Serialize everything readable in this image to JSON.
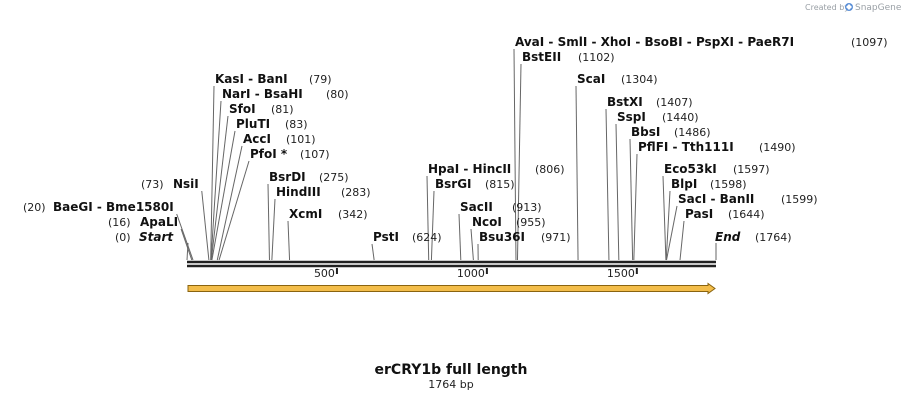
{
  "watermark": {
    "text": "Created by",
    "brand": "SnapGene",
    "icon": "snapgene-logo-icon"
  },
  "sequence": {
    "name": "erCRY1b full length",
    "length_label": "1764 bp",
    "length": 1764,
    "start_label": "Start",
    "start_pos": "(0)",
    "end_label": "End",
    "end_pos": "(1764)",
    "backbone_color": "#222222",
    "feature_color": "#f3bd4a",
    "feature_outline": "#8a6410"
  },
  "ruler": {
    "ticks": [
      500,
      1000,
      1500
    ]
  },
  "sites": [
    {
      "label": "BaeGI  -  Bme1580I",
      "pos": "(20)",
      "site": 20
    },
    {
      "label": "ApaLI",
      "pos": "(16)",
      "site": 16
    },
    {
      "label": "NsiI",
      "pos": "(73)",
      "site": 73
    },
    {
      "label": "KasI  -  BanI",
      "pos": "(79)",
      "site": 79
    },
    {
      "label": "NarI  -  BsaHI",
      "pos": "(80)",
      "site": 80
    },
    {
      "label": "SfoI",
      "pos": "(81)",
      "site": 81
    },
    {
      "label": "PluTI",
      "pos": "(83)",
      "site": 83
    },
    {
      "label": "AccI",
      "pos": "(101)",
      "site": 101
    },
    {
      "label": "PfoI *",
      "pos": "(107)",
      "site": 107
    },
    {
      "label": "BsrDI",
      "pos": "(275)",
      "site": 275
    },
    {
      "label": "HindIII",
      "pos": "(283)",
      "site": 283
    },
    {
      "label": "XcmI",
      "pos": "(342)",
      "site": 342
    },
    {
      "label": "PstI",
      "pos": "(624)",
      "site": 624
    },
    {
      "label": "HpaI  -  HincII",
      "pos": "(806)",
      "site": 806
    },
    {
      "label": "BsrGI",
      "pos": "(815)",
      "site": 815
    },
    {
      "label": "SacII",
      "pos": "(913)",
      "site": 913
    },
    {
      "label": "NcoI",
      "pos": "(955)",
      "site": 955
    },
    {
      "label": "Bsu36I",
      "pos": "(971)",
      "site": 971
    },
    {
      "label": "AvaI  -  SmlI  -  XhoI  -  BsoBI  -  PspXI  -  PaeR7I",
      "pos": "(1097)",
      "site": 1097
    },
    {
      "label": "BstEII",
      "pos": "(1102)",
      "site": 1102
    },
    {
      "label": "ScaI",
      "pos": "(1304)",
      "site": 1304
    },
    {
      "label": "BstXI",
      "pos": "(1407)",
      "site": 1407
    },
    {
      "label": "SspI",
      "pos": "(1440)",
      "site": 1440
    },
    {
      "label": "BbsI",
      "pos": "(1486)",
      "site": 1486
    },
    {
      "label": "PflFI  -  Tth111I",
      "pos": "(1490)",
      "site": 1490
    },
    {
      "label": "Eco53kI",
      "pos": "(1597)",
      "site": 1597
    },
    {
      "label": "BlpI",
      "pos": "(1598)",
      "site": 1598
    },
    {
      "label": "SacI  -  BanII",
      "pos": "(1599)",
      "site": 1599
    },
    {
      "label": "PasI",
      "pos": "(1644)",
      "site": 1644
    }
  ]
}
